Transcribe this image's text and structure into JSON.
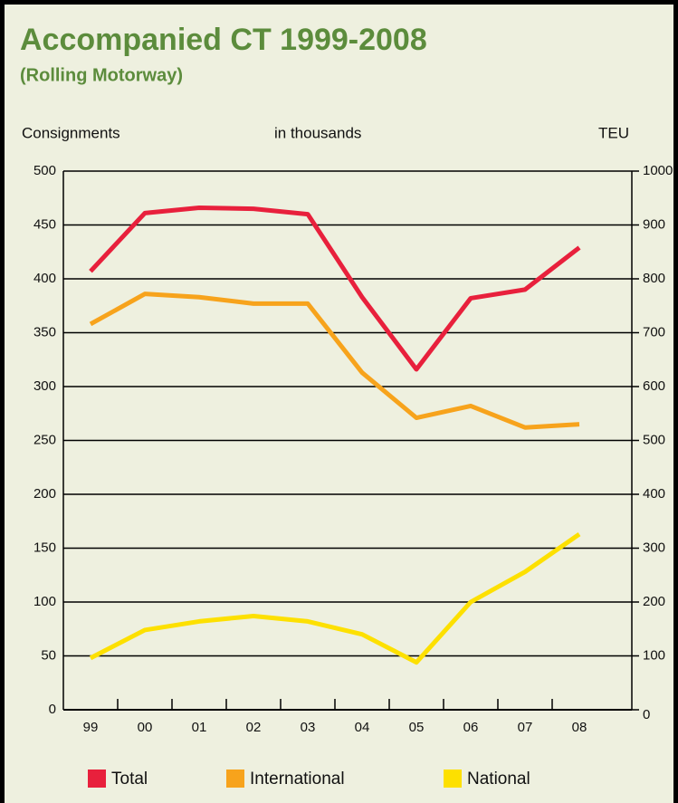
{
  "chart_data": {
    "type": "line",
    "title": "Accompanied CT 1999-2008",
    "subtitle": "(Rolling Motorway)",
    "y_label": "Consignments",
    "units_label": "in thousands",
    "y2_label": "TEU",
    "categories": [
      "99",
      "00",
      "01",
      "02",
      "03",
      "04",
      "05",
      "06",
      "07",
      "08"
    ],
    "series": [
      {
        "name": "Total",
        "color": "#e8203c",
        "values": [
          407,
          461,
          466,
          465,
          460,
          383,
          316,
          382,
          390,
          429
        ]
      },
      {
        "name": "International",
        "color": "#f7a31c",
        "values": [
          358,
          386,
          383,
          377,
          377,
          313,
          271,
          282,
          262,
          265
        ]
      },
      {
        "name": "National",
        "color": "#fde000",
        "values": [
          48,
          74,
          82,
          87,
          82,
          70,
          44,
          100,
          128,
          163
        ]
      }
    ],
    "ylim": [
      0,
      500
    ],
    "yticks": [
      0,
      50,
      100,
      150,
      200,
      250,
      300,
      350,
      400,
      450,
      500
    ],
    "y2lim": [
      0,
      1000
    ],
    "y2ticks": [
      0,
      100,
      200,
      300,
      400,
      500,
      600,
      700,
      800,
      900,
      1000
    ],
    "grid": true,
    "legend": "bottom"
  }
}
